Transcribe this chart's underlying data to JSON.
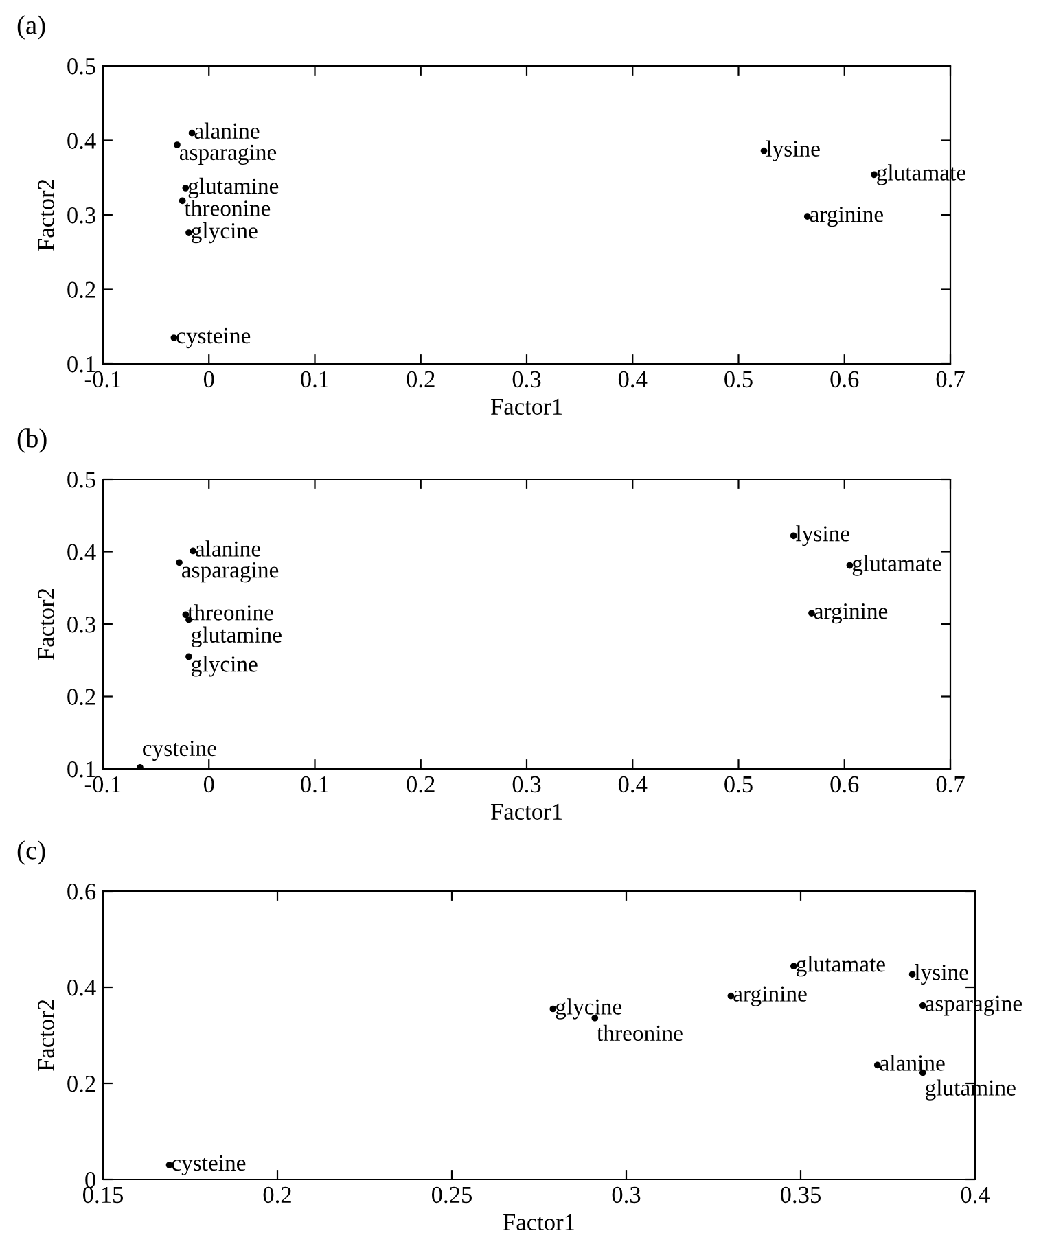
{
  "chart_data": [
    {
      "type": "scatter",
      "title": "(a)",
      "xlabel": "Factor1",
      "ylabel": "Factor2",
      "xlim": [
        -0.1,
        0.7
      ],
      "ylim": [
        0.1,
        0.5
      ],
      "xticks": [
        -0.1,
        0,
        0.1,
        0.2,
        0.3,
        0.4,
        0.5,
        0.6,
        0.7
      ],
      "yticks": [
        0.1,
        0.2,
        0.3,
        0.4,
        0.5
      ],
      "grid": false,
      "marker": "circle",
      "series": [
        {
          "color": "#000000",
          "x": [
            -0.016,
            -0.03,
            -0.022,
            -0.025,
            -0.019,
            -0.033,
            0.524,
            0.628,
            0.565
          ],
          "values": [
            0.41,
            0.394,
            0.336,
            0.319,
            0.276,
            0.135,
            0.386,
            0.354,
            0.298
          ]
        }
      ],
      "annotations": [
        {
          "text": "alanine",
          "x": -0.016,
          "y": 0.41
        },
        {
          "text": "asparagine",
          "x": -0.03,
          "y": 0.394
        },
        {
          "text": "glutamine",
          "x": -0.022,
          "y": 0.336
        },
        {
          "text": "threonine",
          "x": -0.025,
          "y": 0.319
        },
        {
          "text": "glycine",
          "x": -0.019,
          "y": 0.276
        },
        {
          "text": "cysteine",
          "x": -0.033,
          "y": 0.135
        },
        {
          "text": "lysine",
          "x": 0.524,
          "y": 0.386
        },
        {
          "text": "glutamate",
          "x": 0.628,
          "y": 0.354
        },
        {
          "text": "arginine",
          "x": 0.565,
          "y": 0.298
        }
      ]
    },
    {
      "type": "scatter",
      "title": "(b)",
      "xlabel": "Factor1",
      "ylabel": "Factor2",
      "xlim": [
        -0.1,
        0.7
      ],
      "ylim": [
        0.1,
        0.5
      ],
      "xticks": [
        -0.1,
        0,
        0.1,
        0.2,
        0.3,
        0.4,
        0.5,
        0.6,
        0.7
      ],
      "yticks": [
        0.1,
        0.2,
        0.3,
        0.4,
        0.5
      ],
      "grid": false,
      "marker": "circle",
      "series": [
        {
          "color": "#000000",
          "x": [
            -0.015,
            -0.028,
            -0.022,
            -0.019,
            -0.019,
            -0.065,
            0.552,
            0.605,
            0.569
          ],
          "values": [
            0.401,
            0.385,
            0.313,
            0.306,
            0.255,
            0.102,
            0.422,
            0.381,
            0.315
          ]
        }
      ],
      "annotations": [
        {
          "text": "alanine",
          "x": -0.015,
          "y": 0.401
        },
        {
          "text": "asparagine",
          "x": -0.028,
          "y": 0.385
        },
        {
          "text": "threonine",
          "x": -0.022,
          "y": 0.313
        },
        {
          "text": "glutamine",
          "x": -0.019,
          "y": 0.306
        },
        {
          "text": "glycine",
          "x": -0.019,
          "y": 0.255
        },
        {
          "text": "cysteine",
          "x": -0.065,
          "y": 0.102
        },
        {
          "text": "lysine",
          "x": 0.552,
          "y": 0.422
        },
        {
          "text": "glutamate",
          "x": 0.605,
          "y": 0.381
        },
        {
          "text": "arginine",
          "x": 0.569,
          "y": 0.315
        }
      ]
    },
    {
      "type": "scatter",
      "title": "(c)",
      "xlabel": "Factor1",
      "ylabel": "Factor2",
      "xlim": [
        0.15,
        0.4
      ],
      "ylim": [
        0,
        0.6
      ],
      "xticks": [
        0.15,
        0.2,
        0.25,
        0.3,
        0.35,
        0.4
      ],
      "yticks": [
        0,
        0.2,
        0.4,
        0.6
      ],
      "grid": false,
      "marker": "circle",
      "series": [
        {
          "color": "#000000",
          "x": [
            0.169,
            0.279,
            0.291,
            0.33,
            0.348,
            0.382,
            0.385,
            0.372,
            0.385
          ],
          "values": [
            0.03,
            0.355,
            0.336,
            0.382,
            0.444,
            0.427,
            0.362,
            0.238,
            0.222
          ]
        }
      ],
      "annotations": [
        {
          "text": "cysteine",
          "x": 0.169,
          "y": 0.03
        },
        {
          "text": "glycine",
          "x": 0.279,
          "y": 0.355
        },
        {
          "text": "threonine",
          "x": 0.291,
          "y": 0.336
        },
        {
          "text": "arginine",
          "x": 0.33,
          "y": 0.382
        },
        {
          "text": "glutamate",
          "x": 0.348,
          "y": 0.444
        },
        {
          "text": "lysine",
          "x": 0.382,
          "y": 0.427
        },
        {
          "text": "asparagine",
          "x": 0.385,
          "y": 0.362
        },
        {
          "text": "alanine",
          "x": 0.372,
          "y": 0.238
        },
        {
          "text": "glutamine",
          "x": 0.385,
          "y": 0.222
        }
      ]
    }
  ]
}
